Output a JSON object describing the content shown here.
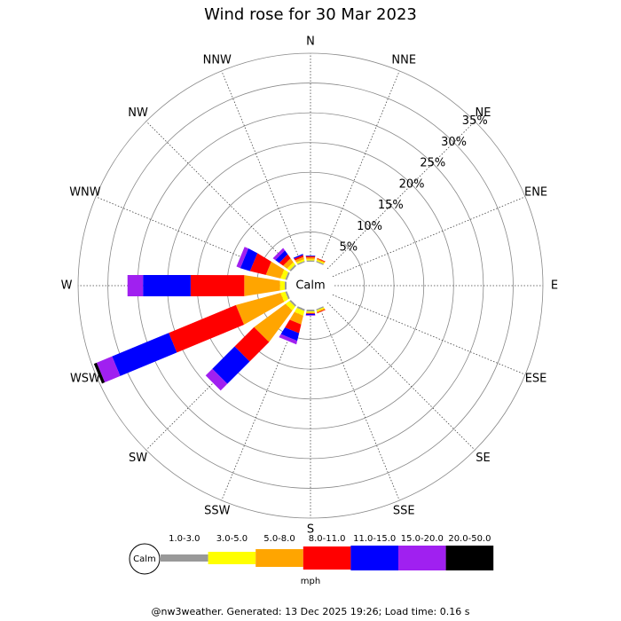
{
  "chart_data": {
    "type": "windrose",
    "title": "Wind rose for 30 Mar 2023",
    "directions": [
      "N",
      "NNE",
      "NE",
      "ENE",
      "E",
      "ESE",
      "SE",
      "SSE",
      "S",
      "SSW",
      "SW",
      "WSW",
      "W",
      "WNW",
      "NW",
      "NNW"
    ],
    "calm_label": "Calm",
    "units": "mph",
    "footer": "@nw3weather. Generated: 13 Dec 2025 19:26; Load time: 0.16 s",
    "rlim": [
      0,
      35
    ],
    "rticks": [
      {
        "value": 5,
        "label": "5%"
      },
      {
        "value": 10,
        "label": "10%"
      },
      {
        "value": 15,
        "label": "15%"
      },
      {
        "value": 20,
        "label": "20%"
      },
      {
        "value": 25,
        "label": "25%"
      },
      {
        "value": 30,
        "label": "30%"
      },
      {
        "value": 35,
        "label": "35%"
      }
    ],
    "series": [
      {
        "name": "1.0-3.0",
        "color": "#999999",
        "values": [
          0.2,
          0.2,
          0,
          0,
          0,
          0,
          0,
          0.2,
          0.3,
          0.3,
          0.3,
          0.3,
          0.3,
          0.3,
          0.3,
          0.2
        ]
      },
      {
        "name": "3.0-5.0",
        "color": "#ffff00",
        "values": [
          0.2,
          0.2,
          0,
          0,
          0,
          0,
          0,
          0.2,
          0.2,
          0.8,
          0.8,
          0.8,
          0.8,
          0.8,
          0.5,
          0.3
        ]
      },
      {
        "name": "5.0-8.0",
        "color": "#ffa500",
        "values": [
          0.3,
          0.2,
          0,
          0,
          0,
          0,
          0,
          0.2,
          0.1,
          1.5,
          6.5,
          7.7,
          6,
          2.5,
          0.8,
          0.4
        ]
      },
      {
        "name": "8.0-11.0",
        "color": "#ff0000",
        "values": [
          0.2,
          0.1,
          0,
          0,
          0,
          0,
          0,
          0.1,
          0.1,
          1.5,
          4.6,
          12.2,
          9,
          2.7,
          0.8,
          0.3
        ]
      },
      {
        "name": "11.0-15.0",
        "color": "#0000ff",
        "values": [
          0.1,
          0,
          0,
          0,
          0,
          0,
          0,
          0,
          0.2,
          1.3,
          5.3,
          10.3,
          8,
          1.7,
          0.8,
          0.2
        ]
      },
      {
        "name": "15.0-20.0",
        "color": "#a020f0",
        "values": [
          0,
          0,
          0,
          0,
          0,
          0,
          0,
          0,
          0.1,
          0.6,
          1.6,
          2.8,
          2.6,
          0.7,
          0.5,
          0
        ]
      },
      {
        "name": "20.0-50.0",
        "color": "#000000",
        "values": [
          0,
          0,
          0,
          0,
          0,
          0,
          0,
          0,
          0,
          0,
          0,
          0.5,
          0,
          0,
          0,
          0
        ]
      }
    ]
  }
}
